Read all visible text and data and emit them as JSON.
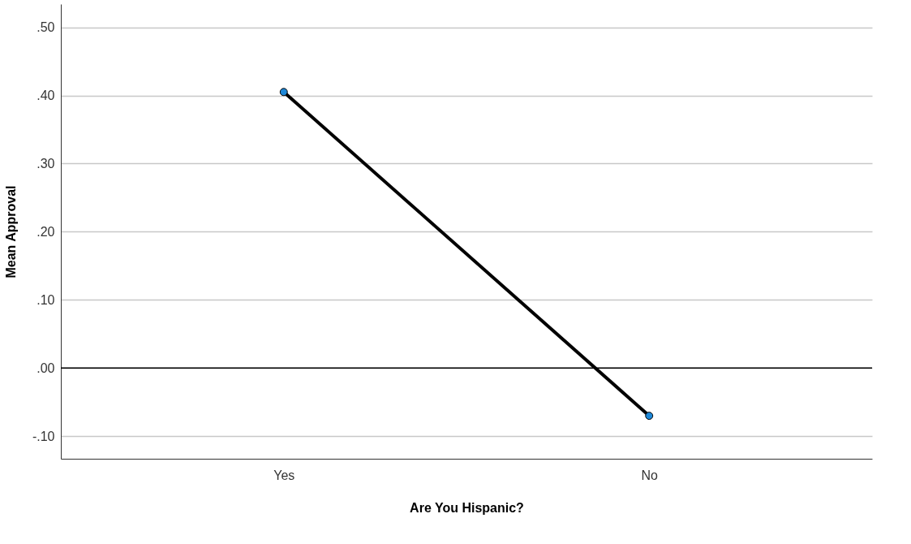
{
  "chart_data": {
    "type": "line",
    "xlabel": "Are You Hispanic?",
    "ylabel": "Mean Approval",
    "categories": [
      "Yes",
      "No"
    ],
    "series": [
      {
        "color": "#000000",
        "colors": [
          "#1e88d8",
          "#1e88d8"
        ],
        "values": [
          0.405,
          -0.07
        ]
      }
    ],
    "ylim": [
      -0.133,
      0.534
    ],
    "yticks": [
      {
        "value": -0.1,
        "label": "-.10"
      },
      {
        "value": 0.0,
        "label": ".00"
      },
      {
        "value": 0.1,
        "label": ".10"
      },
      {
        "value": 0.2,
        "label": ".20"
      },
      {
        "value": 0.3,
        "label": ".30"
      },
      {
        "value": 0.4,
        "label": ".40"
      },
      {
        "value": 0.5,
        "label": ".50"
      }
    ],
    "ref_lines": [
      {
        "axis": "y",
        "value": 0,
        "color": "#000000"
      }
    ],
    "grid": "y",
    "marker": "circle",
    "line_style": "solid"
  }
}
